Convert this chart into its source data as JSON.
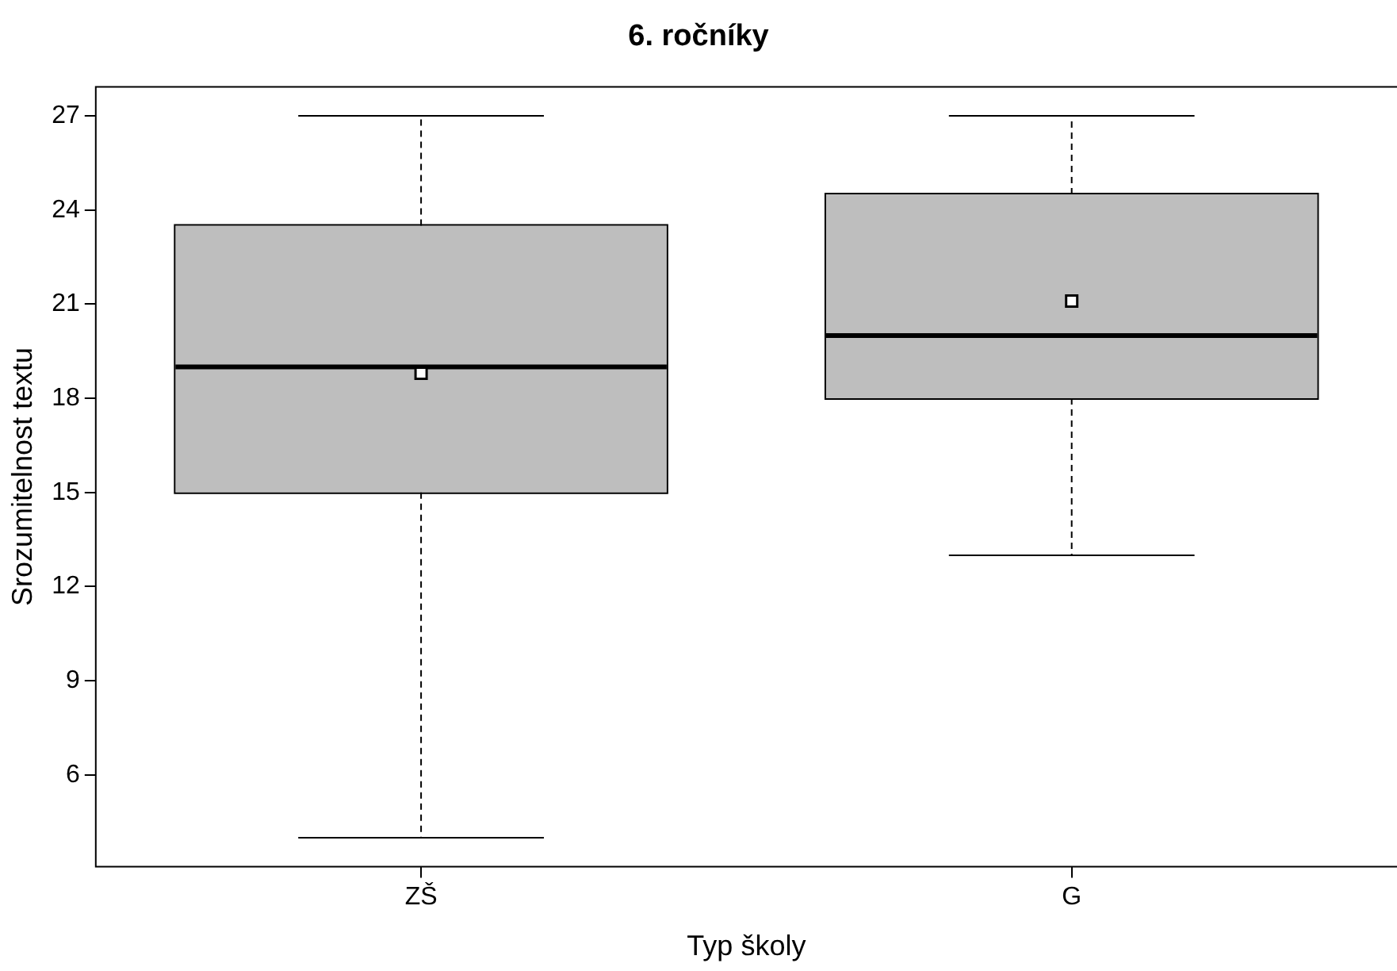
{
  "chart_data": {
    "type": "box",
    "title": "6. ročníky",
    "xlabel": "Typ školy",
    "ylabel": "Srozumitelnost textu",
    "categories": [
      "ZŠ",
      "G"
    ],
    "color": "#bebebe",
    "boxes": [
      {
        "low": 4,
        "q1": 15,
        "median": 19,
        "q3": 23.5,
        "high": 27,
        "mean": 18.8
      },
      {
        "low": 13,
        "q1": 18,
        "median": 20,
        "q3": 24.5,
        "high": 27,
        "mean": 21.1
      }
    ],
    "ylim": [
      3.08,
      27.92
    ],
    "yticks": [
      6,
      9,
      12,
      15,
      18,
      21,
      24,
      27
    ]
  }
}
